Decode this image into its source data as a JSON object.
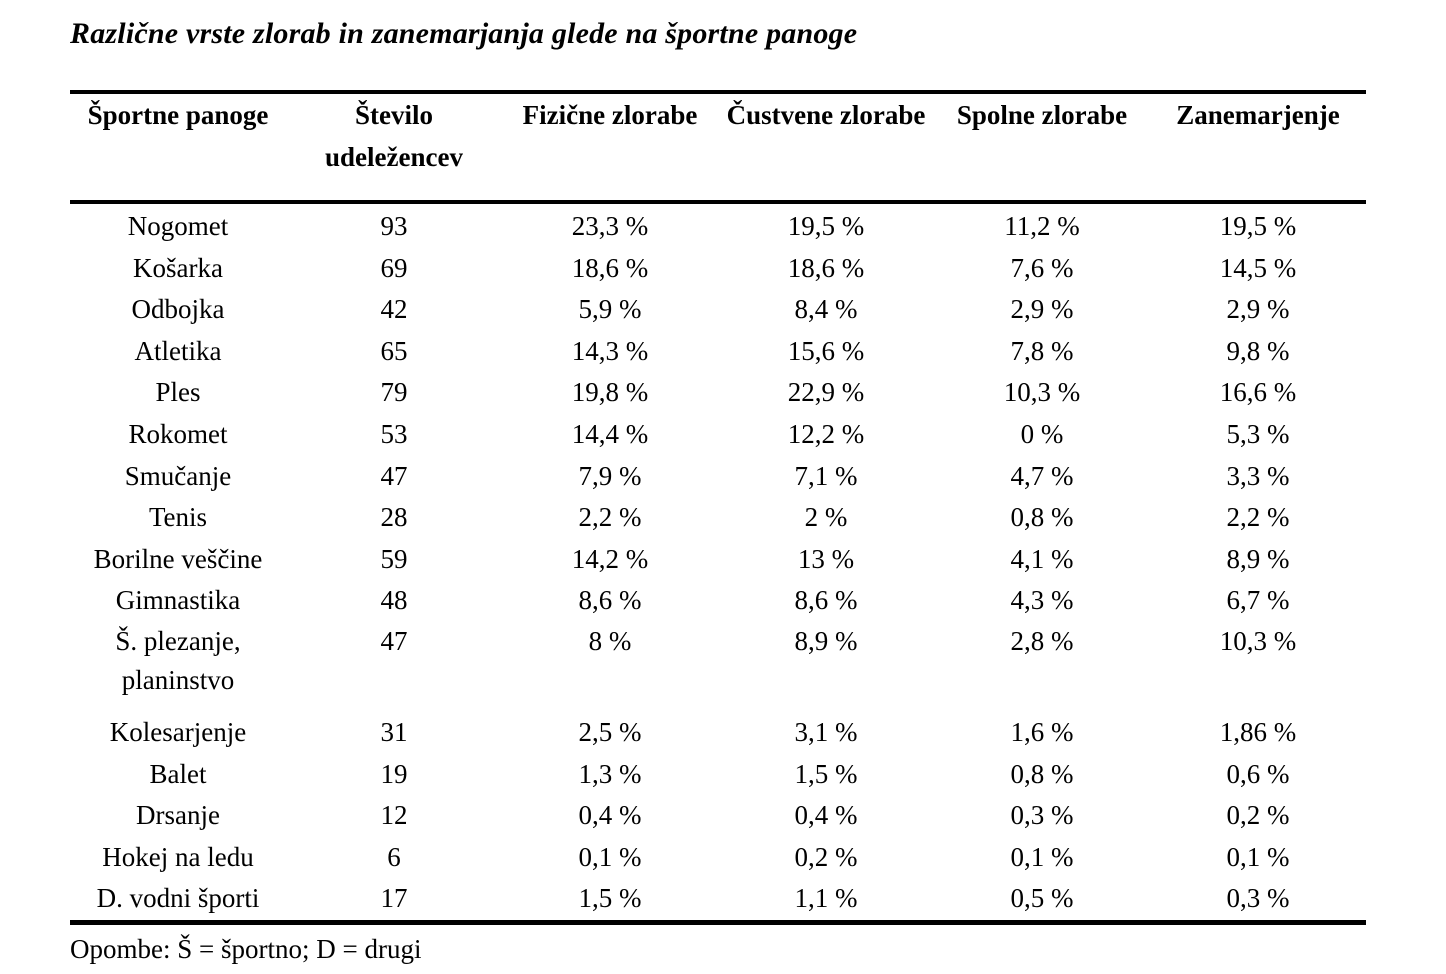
{
  "title": "Različne vrste zlorab in zanemarjanja glede na športne panoge",
  "table": {
    "columns": [
      "Športne panoge",
      "Število udeležencev",
      "Fizične zlorabe",
      "Čustvene zlorabe",
      "Spolne zlorabe",
      "Zanemarjenje"
    ],
    "rows": [
      [
        "Nogomet",
        "93",
        "23,3 %",
        "19,5 %",
        "11,2 %",
        "19,5 %"
      ],
      [
        "Košarka",
        "69",
        "18,6 %",
        "18,6 %",
        "7,6 %",
        "14,5 %"
      ],
      [
        "Odbojka",
        "42",
        "5,9 %",
        "8,4 %",
        "2,9 %",
        "2,9 %"
      ],
      [
        "Atletika",
        "65",
        "14,3 %",
        "15,6 %",
        "7,8 %",
        "9,8 %"
      ],
      [
        "Ples",
        "79",
        "19,8 %",
        "22,9 %",
        "10,3 %",
        "16,6 %"
      ],
      [
        "Rokomet",
        "53",
        "14,4 %",
        "12,2 %",
        "0 %",
        "5,3 %"
      ],
      [
        "Smučanje",
        "47",
        "7,9 %",
        "7,1 %",
        "4,7 %",
        "3,3 %"
      ],
      [
        "Tenis",
        "28",
        "2,2 %",
        "2 %",
        "0,8 %",
        "2,2 %"
      ],
      [
        "Borilne veščine",
        "59",
        "14,2 %",
        "13 %",
        "4,1 %",
        "8,9 %"
      ],
      [
        "Gimnastika",
        "48",
        "8,6 %",
        "8,6 %",
        "4,3 %",
        "6,7 %"
      ],
      [
        "Š. plezanje, planinstvo",
        "47",
        "8 %",
        "8,9 %",
        "2,8 %",
        "10,3 %"
      ],
      [
        "Kolesarjenje",
        "31",
        "2,5 %",
        "3,1 %",
        "1,6 %",
        "1,86 %"
      ],
      [
        "Balet",
        "19",
        "1,3 %",
        "1,5 %",
        "0,8 %",
        "0,6 %"
      ],
      [
        "Drsanje",
        "12",
        "0,4 %",
        "0,4 %",
        "0,3 %",
        "0,2 %"
      ],
      [
        "Hokej na ledu",
        "6",
        "0,1 %",
        "0,2 %",
        "0,1 %",
        "0,1 %"
      ],
      [
        "D. vodni športi",
        "17",
        "1,5 %",
        "1,1 %",
        "0,5 %",
        "0,3 %"
      ]
    ]
  },
  "note": "Opombe: Š = športno; D = drugi",
  "colors": {
    "text": "#000000",
    "background": "#ffffff",
    "rule": "#000000"
  }
}
